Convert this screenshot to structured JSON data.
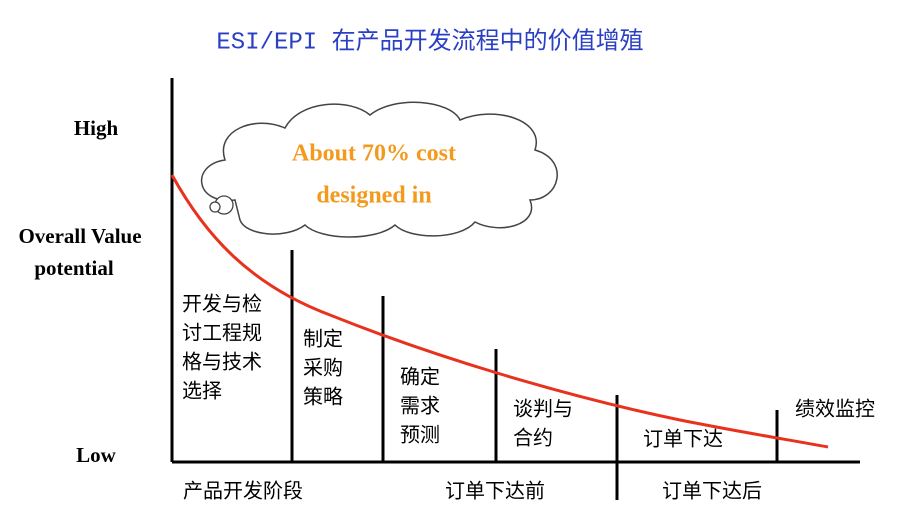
{
  "title": "ESI/EPI 在产品开发流程中的价值增殖",
  "y_axis": {
    "high": "High",
    "label": [
      "Overall Value",
      "potential"
    ],
    "low": "Low"
  },
  "cloud": {
    "lines": [
      "About 70% cost",
      "designed in"
    ]
  },
  "stages": [
    {
      "lines": [
        "开发与检",
        "讨工程规",
        "格与技术",
        "选择"
      ]
    },
    {
      "lines": [
        "制定",
        "采购",
        "策略"
      ]
    },
    {
      "lines": [
        "确定",
        "需求",
        "预测"
      ]
    },
    {
      "lines": [
        "谈判与",
        "合约"
      ]
    },
    {
      "lines": [
        "订单下达"
      ]
    },
    {
      "lines": [
        "绩效监控"
      ]
    }
  ],
  "phases": [
    "产品开发阶段",
    "订单下达前",
    "订单下达后"
  ]
}
